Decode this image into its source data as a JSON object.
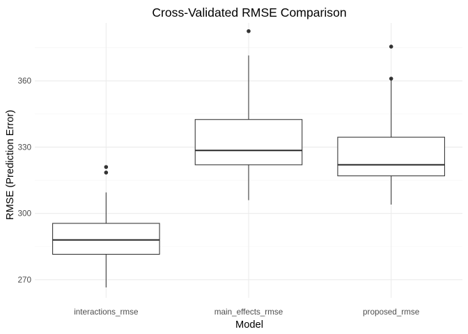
{
  "chart_data": {
    "type": "boxplot",
    "title": "Cross-Validated RMSE Comparison",
    "xlabel": "Model",
    "ylabel": "RMSE (Prediction Error)",
    "ylim": [
      261.8,
      386.2
    ],
    "y_ticks": [
      270,
      300,
      330,
      360
    ],
    "y_minor_ticks": [
      285,
      315,
      345,
      375
    ],
    "grid": true,
    "categories": [
      "interactions_rmse",
      "main_effects_rmse",
      "proposed_rmse"
    ],
    "boxes": [
      {
        "category": "interactions_rmse",
        "min": 266.5,
        "q1": 281.5,
        "median": 288.0,
        "q3": 295.5,
        "max": 309.5,
        "outliers": [
          321.0,
          318.5
        ]
      },
      {
        "category": "main_effects_rmse",
        "min": 306.0,
        "q1": 322.0,
        "median": 328.5,
        "q3": 342.5,
        "max": 371.5,
        "outliers": [
          382.5
        ]
      },
      {
        "category": "proposed_rmse",
        "min": 304.0,
        "q1": 317.0,
        "median": 322.0,
        "q3": 334.5,
        "max": 361.0,
        "outliers": [
          361.0,
          375.5
        ]
      }
    ]
  }
}
